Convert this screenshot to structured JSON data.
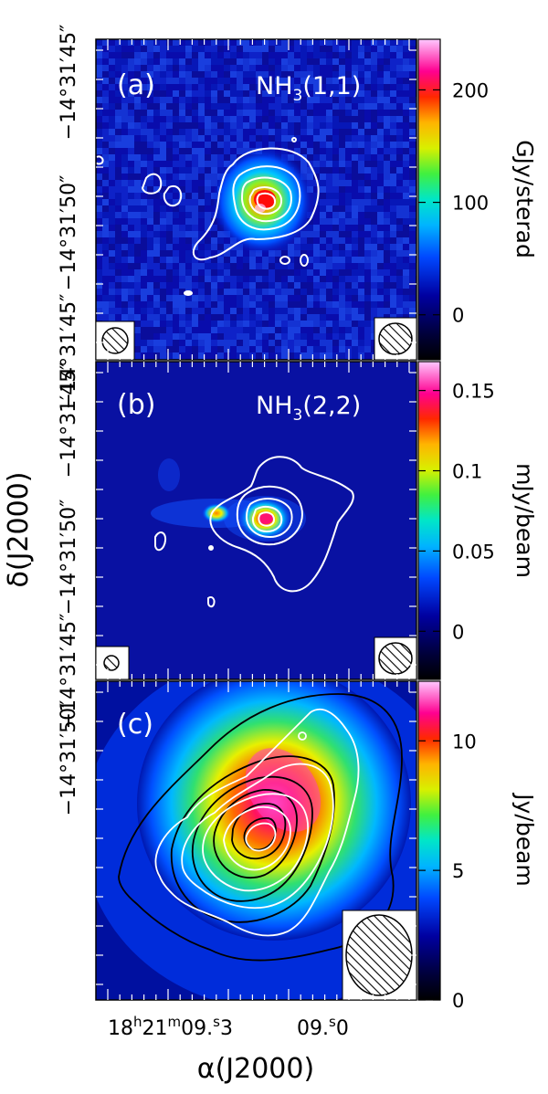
{
  "chart_data": [
    {
      "type": "heatmap",
      "panel_label": "(a)",
      "line_label_main": "NH",
      "line_label_sub": "3",
      "line_label_tail": "(1,1)",
      "colorbar": {
        "label": "GJy/sterad",
        "ticks": [
          0,
          100,
          200
        ],
        "range": [
          -40,
          245
        ]
      },
      "ylabel_ticks": [
        "−14°31′45″",
        "−14°31′50″",
        "−14°31′45″"
      ],
      "contours": "white",
      "beams": [
        "left-bottom",
        "right-bottom"
      ]
    },
    {
      "type": "heatmap",
      "panel_label": "(b)",
      "line_label_main": "NH",
      "line_label_sub": "3",
      "line_label_tail": "(2,2)",
      "colorbar": {
        "label": "mJy/beam",
        "ticks": [
          0,
          0.05,
          0.1,
          0.15
        ],
        "range": [
          -0.03,
          0.168
        ]
      },
      "ylabel_ticks": [
        "−14°31′45″",
        "−14°31′50″",
        "−14°31′45″"
      ],
      "contours": "white",
      "beams": [
        "left-bottom",
        "right-bottom"
      ]
    },
    {
      "type": "heatmap",
      "panel_label": "(c)",
      "colorbar": {
        "label": "Jy/beam",
        "ticks": [
          0,
          5,
          10
        ],
        "range": [
          0,
          12.3
        ]
      },
      "ylabel_ticks": [
        "−14°31′50″"
      ],
      "contours": "white and black",
      "beams": [
        "right-bottom"
      ]
    }
  ],
  "axes": {
    "ylabel_main": "δ(J2000)",
    "xlabel_main": "α(J2000)",
    "xticks": [
      "18h21m09.s3",
      "09.s0"
    ]
  }
}
